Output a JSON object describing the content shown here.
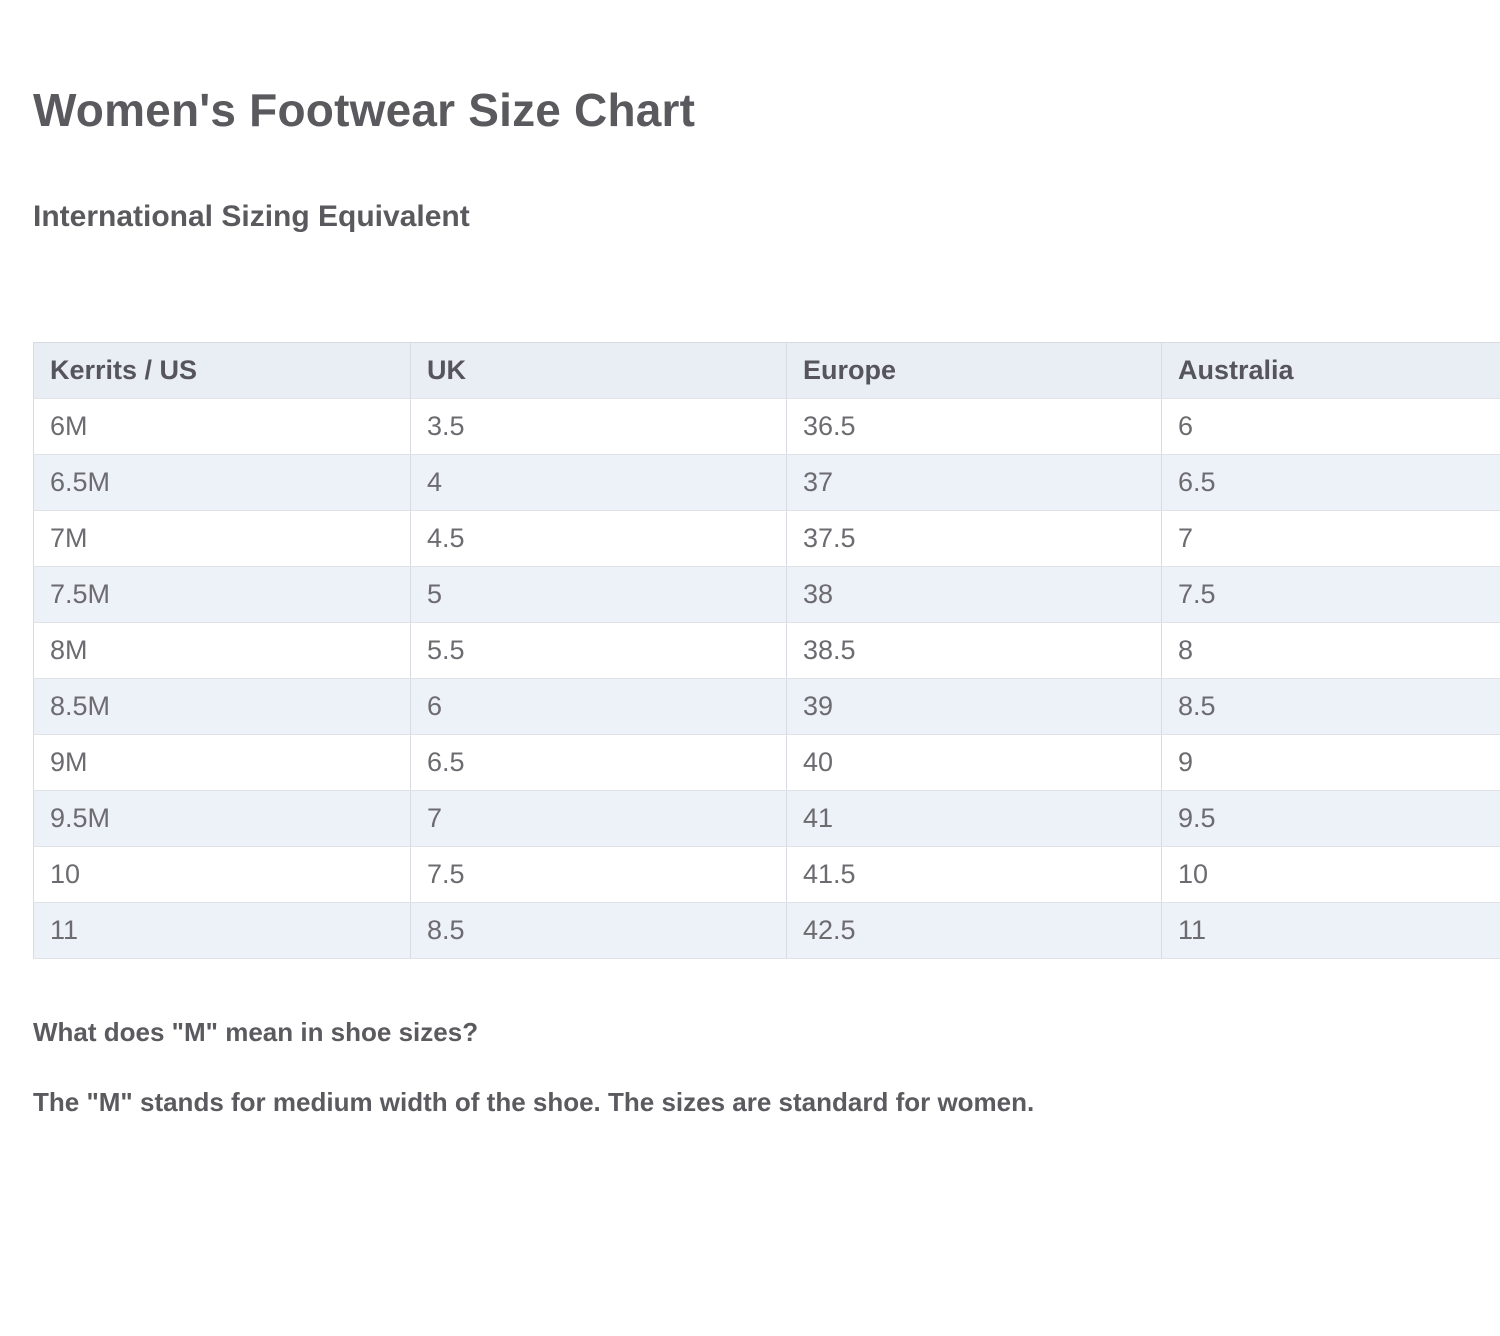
{
  "page": {
    "title": "Women's Footwear Size Chart",
    "subtitle": "International Sizing Equivalent"
  },
  "size_table": {
    "columns": [
      "Kerrits / US",
      "UK",
      "Europe",
      "Australia"
    ],
    "rows": [
      [
        "6M",
        "3.5",
        "36.5",
        "6"
      ],
      [
        "6.5M",
        "4",
        "37",
        "6.5"
      ],
      [
        "7M",
        "4.5",
        "37.5",
        "7"
      ],
      [
        "7.5M",
        "5",
        "38",
        "7.5"
      ],
      [
        "8M",
        "5.5",
        "38.5",
        "8"
      ],
      [
        "8.5M",
        "6",
        "39",
        "8.5"
      ],
      [
        "9M",
        "6.5",
        "40",
        "9"
      ],
      [
        "9.5M",
        "7",
        "41",
        "9.5"
      ],
      [
        "10",
        "7.5",
        "41.5",
        "10"
      ],
      [
        "11",
        "8.5",
        "42.5",
        "11"
      ]
    ]
  },
  "faq": {
    "question": "What does \"M\" mean in shoe sizes?",
    "answer": "The \"M\" stands for medium width of the shoe. The sizes are standard for women."
  },
  "colors": {
    "header_row_bg": "#e9eef5",
    "alt_row_bg": "#edf1f8",
    "table_border": "#d8dce2",
    "heading_text": "#5a5a5e",
    "cell_text": "#6c6b70"
  }
}
